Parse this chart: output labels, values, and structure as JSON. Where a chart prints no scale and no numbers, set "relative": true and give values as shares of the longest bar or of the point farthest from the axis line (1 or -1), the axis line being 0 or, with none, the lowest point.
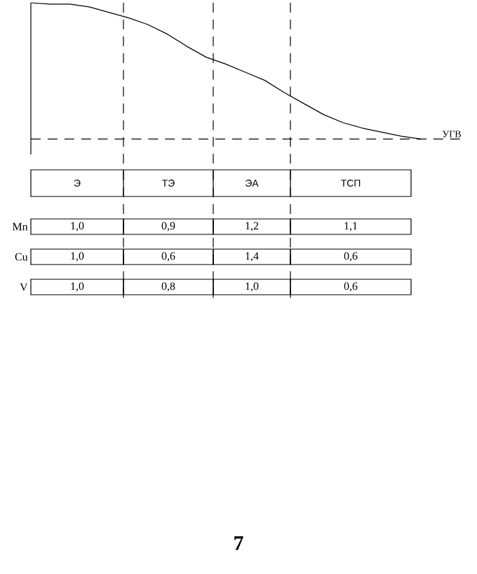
{
  "chart_data": [
    {
      "type": "line",
      "relative": true,
      "categories": [
        null,
        null,
        null,
        null,
        null,
        null,
        null,
        null,
        null,
        null,
        null,
        null,
        null,
        null,
        null,
        null,
        null,
        null,
        null,
        null,
        null
      ],
      "series": [
        {
          "color": "#000000",
          "values": [
            1.0,
            0.99,
            0.99,
            0.97,
            0.93,
            0.89,
            0.84,
            0.77,
            0.68,
            0.6,
            0.55,
            0.49,
            0.43,
            0.34,
            0.26,
            0.18,
            0.12,
            0.08,
            0.05,
            0.02,
            0.0
          ]
        }
      ],
      "ref_lines": [
        {
          "axis": "y",
          "value": 0,
          "label": "УГВ",
          "line_style": "dashed"
        }
      ]
    },
    {
      "type": "other",
      "categories": [
        "Э",
        "ТЭ",
        "ЭА",
        "ТСП"
      ],
      "y_categories": [
        "Mn",
        "Cu",
        "V"
      ],
      "cell_labels": [
        [
          "1,0",
          "0,9",
          "1,2",
          "1,1"
        ],
        [
          "1,0",
          "0,6",
          "1,4",
          "0,6"
        ],
        [
          "1,0",
          "0,8",
          "1,0",
          "0,6"
        ]
      ],
      "annotations": [
        "7"
      ]
    }
  ]
}
